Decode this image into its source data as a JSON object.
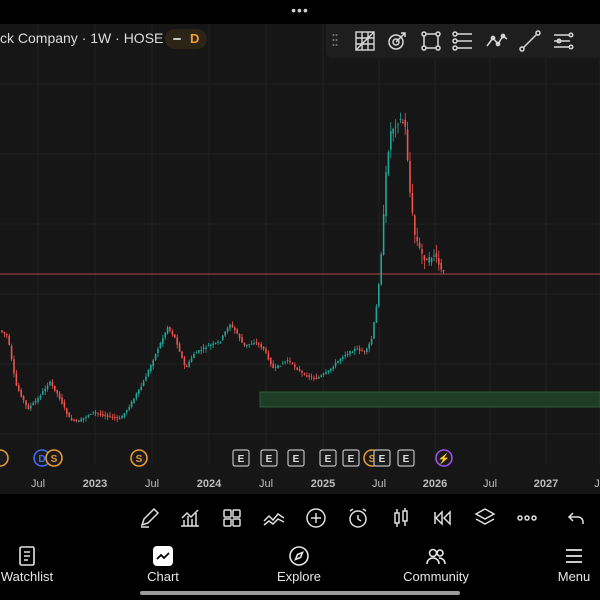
{
  "header": {
    "more_glyph": "•••",
    "symbol_title": "ck Company · 1W · HOSE",
    "status_letter": "D"
  },
  "drawing_tools": [
    {
      "name": "fib-grid-icon"
    },
    {
      "name": "magnet-target-icon"
    },
    {
      "name": "rectangle-icon"
    },
    {
      "name": "channel-icon"
    },
    {
      "name": "path-icon"
    },
    {
      "name": "trend-line-icon"
    },
    {
      "name": "ruler-lines-icon"
    }
  ],
  "chart_data": {
    "type": "candlestick",
    "x_tick_labels": [
      "Jul",
      "2023",
      "Jul",
      "2024",
      "Jul",
      "2025",
      "Jul",
      "2026",
      "Jul",
      "2027",
      "J"
    ],
    "events": [
      {
        "label": "",
        "kind": "split"
      },
      {
        "label": "D",
        "kind": "dividend"
      },
      {
        "label": "S",
        "kind": "split"
      },
      {
        "label": "S",
        "kind": "split"
      },
      {
        "label": "E",
        "kind": "earnings"
      },
      {
        "label": "E",
        "kind": "earnings"
      },
      {
        "label": "E",
        "kind": "earnings"
      },
      {
        "label": "E",
        "kind": "earnings"
      },
      {
        "label": "E",
        "kind": "earnings"
      },
      {
        "label": "S",
        "kind": "split"
      },
      {
        "label": "E",
        "kind": "earnings"
      },
      {
        "label": "E",
        "kind": "earnings"
      },
      {
        "label": "⚡",
        "kind": "flash"
      }
    ],
    "up_color": "#26a69a",
    "down_color": "#ef5350",
    "price_line_color": "#b3404a",
    "zone_color": "#1f3d24"
  },
  "bottom_toolbar": [
    {
      "name": "brush-icon"
    },
    {
      "name": "indicators-icon"
    },
    {
      "name": "layout-grid-icon"
    },
    {
      "name": "compare-icon"
    },
    {
      "name": "add-icon"
    },
    {
      "name": "alert-clock-icon"
    },
    {
      "name": "candle-type-icon"
    },
    {
      "name": "replay-icon"
    },
    {
      "name": "layers-icon"
    },
    {
      "name": "more-icon"
    },
    {
      "name": "undo-icon"
    }
  ],
  "nav": {
    "watchlist": "Watchlist",
    "chart": "Chart",
    "explore": "Explore",
    "community": "Community",
    "menu": "Menu"
  }
}
